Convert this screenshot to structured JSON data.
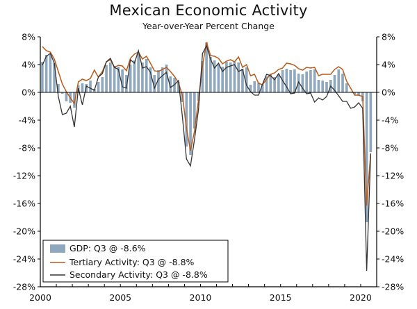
{
  "chart_data": {
    "type": "bar+line",
    "title": "Mexican Economic Activity",
    "subtitle": "Year-over-Year Percent Change",
    "xlabel": "",
    "ylabel": "",
    "ylim": [
      -28,
      8
    ],
    "yticks": [
      8,
      4,
      0,
      -4,
      -8,
      -12,
      -16,
      -20,
      -24,
      -28
    ],
    "ytick_labels": [
      "8%",
      "4%",
      "0%",
      "-4%",
      "-8%",
      "-12%",
      "-16%",
      "-20%",
      "-24%",
      "-28%"
    ],
    "xlim": [
      2000.0,
      2021.0
    ],
    "xticks": [
      2000,
      2005,
      2010,
      2015,
      2020
    ],
    "xtick_labels": [
      "2000",
      "2005",
      "2010",
      "2015",
      "2020"
    ],
    "legend_position": "bottom-left",
    "legend": [
      "GDP: Q3 @ -8.6%",
      "Tertiary Activity: Q3 @ -8.8%",
      "Secondary Activity: Q3 @ -8.8%"
    ],
    "colors": {
      "gdp": "#8fa8bd",
      "tertiary": "#b85a1c",
      "secondary": "#333333",
      "axis": "#000000"
    },
    "series": [
      {
        "name": "GDP",
        "type": "bar",
        "x": [
          2000.0,
          2000.25,
          2000.5,
          2000.75,
          2001.0,
          2001.25,
          2001.5,
          2001.75,
          2002.0,
          2002.25,
          2002.5,
          2002.75,
          2003.0,
          2003.25,
          2003.5,
          2003.75,
          2004.0,
          2004.25,
          2004.5,
          2004.75,
          2005.0,
          2005.25,
          2005.5,
          2005.75,
          2006.0,
          2006.25,
          2006.5,
          2006.75,
          2007.0,
          2007.25,
          2007.5,
          2007.75,
          2008.0,
          2008.25,
          2008.5,
          2008.75,
          2009.0,
          2009.25,
          2009.5,
          2009.75,
          2010.0,
          2010.25,
          2010.5,
          2010.75,
          2011.0,
          2011.25,
          2011.5,
          2011.75,
          2012.0,
          2012.25,
          2012.5,
          2012.75,
          2013.0,
          2013.25,
          2013.5,
          2013.75,
          2014.0,
          2014.25,
          2014.5,
          2014.75,
          2015.0,
          2015.25,
          2015.5,
          2015.75,
          2016.0,
          2016.25,
          2016.5,
          2016.75,
          2017.0,
          2017.25,
          2017.5,
          2017.75,
          2018.0,
          2018.25,
          2018.5,
          2018.75,
          2019.0,
          2019.25,
          2019.5,
          2019.75,
          2020.0,
          2020.25,
          2020.5
        ],
        "values": [
          4.4,
          5.4,
          5.6,
          4.2,
          1.2,
          -0.2,
          -1.3,
          -1.5,
          -2.2,
          1.0,
          1.3,
          1.2,
          1.7,
          0.5,
          1.5,
          2.2,
          3.9,
          4.3,
          3.8,
          3.7,
          3.3,
          2.5,
          4.0,
          4.6,
          5.6,
          4.3,
          4.8,
          3.6,
          2.5,
          3.2,
          3.6,
          4.0,
          2.3,
          2.1,
          1.5,
          -1.4,
          -7.8,
          -9.0,
          -5.2,
          -1.2,
          4.5,
          7.2,
          5.1,
          4.6,
          4.1,
          3.7,
          4.4,
          4.3,
          4.4,
          4.3,
          3.4,
          3.6,
          1.1,
          1.6,
          1.4,
          1.1,
          2.3,
          2.6,
          2.2,
          2.6,
          3.2,
          3.4,
          3.2,
          3.3,
          2.7,
          2.6,
          3.0,
          3.2,
          3.3,
          1.8,
          1.7,
          1.5,
          1.8,
          2.5,
          3.3,
          2.7,
          1.3,
          0.1,
          -0.3,
          -0.5,
          -1.3,
          -18.7,
          -8.6
        ]
      },
      {
        "name": "Tertiary Activity",
        "type": "line",
        "x": [
          2000.0,
          2000.25,
          2000.5,
          2000.75,
          2001.0,
          2001.25,
          2001.5,
          2001.75,
          2002.0,
          2002.25,
          2002.5,
          2002.75,
          2003.0,
          2003.25,
          2003.5,
          2003.75,
          2004.0,
          2004.25,
          2004.5,
          2004.75,
          2005.0,
          2005.25,
          2005.5,
          2005.75,
          2006.0,
          2006.25,
          2006.5,
          2006.75,
          2007.0,
          2007.25,
          2007.5,
          2007.75,
          2008.0,
          2008.25,
          2008.5,
          2008.75,
          2009.0,
          2009.25,
          2009.5,
          2009.75,
          2010.0,
          2010.25,
          2010.5,
          2010.75,
          2011.0,
          2011.25,
          2011.5,
          2011.75,
          2012.0,
          2012.25,
          2012.5,
          2012.75,
          2013.0,
          2013.25,
          2013.5,
          2013.75,
          2014.0,
          2014.25,
          2014.5,
          2014.75,
          2015.0,
          2015.25,
          2015.5,
          2015.75,
          2016.0,
          2016.25,
          2016.5,
          2016.75,
          2017.0,
          2017.25,
          2017.5,
          2017.75,
          2018.0,
          2018.25,
          2018.5,
          2018.75,
          2019.0,
          2019.25,
          2019.5,
          2019.75,
          2020.0,
          2020.25,
          2020.5
        ],
        "values": [
          6.6,
          6.0,
          5.8,
          4.8,
          3.0,
          1.2,
          0.1,
          -0.8,
          -1.6,
          1.5,
          1.9,
          1.7,
          2.0,
          3.2,
          2.2,
          3.0,
          4.4,
          4.7,
          3.6,
          3.9,
          3.8,
          3.1,
          4.9,
          5.5,
          5.8,
          4.8,
          5.2,
          4.2,
          3.1,
          3.0,
          3.3,
          3.6,
          3.0,
          2.3,
          1.4,
          -0.5,
          -5.2,
          -8.4,
          -5.6,
          -1.1,
          3.8,
          7.2,
          5.3,
          5.2,
          4.9,
          4.1,
          4.5,
          4.7,
          4.4,
          5.1,
          3.6,
          4.0,
          2.4,
          2.6,
          1.3,
          1.1,
          1.9,
          2.6,
          2.8,
          3.3,
          3.5,
          4.2,
          4.1,
          3.9,
          3.4,
          3.2,
          3.6,
          3.5,
          3.6,
          2.4,
          2.6,
          2.6,
          2.6,
          3.3,
          3.7,
          3.3,
          1.6,
          0.6,
          -0.4,
          -0.4,
          -0.6,
          -16.3,
          -8.8
        ]
      },
      {
        "name": "Secondary Activity",
        "type": "line",
        "x": [
          2000.0,
          2000.25,
          2000.5,
          2000.75,
          2001.0,
          2001.25,
          2001.5,
          2001.75,
          2002.0,
          2002.25,
          2002.5,
          2002.75,
          2003.0,
          2003.25,
          2003.5,
          2003.75,
          2004.0,
          2004.25,
          2004.5,
          2004.75,
          2005.0,
          2005.25,
          2005.5,
          2005.75,
          2006.0,
          2006.25,
          2006.5,
          2006.75,
          2007.0,
          2007.25,
          2007.5,
          2007.75,
          2008.0,
          2008.25,
          2008.5,
          2008.75,
          2009.0,
          2009.25,
          2009.5,
          2009.75,
          2010.0,
          2010.25,
          2010.5,
          2010.75,
          2011.0,
          2011.25,
          2011.5,
          2011.75,
          2012.0,
          2012.25,
          2012.5,
          2012.75,
          2013.0,
          2013.25,
          2013.5,
          2013.75,
          2014.0,
          2014.25,
          2014.5,
          2014.75,
          2015.0,
          2015.25,
          2015.5,
          2015.75,
          2016.0,
          2016.25,
          2016.5,
          2016.75,
          2017.0,
          2017.25,
          2017.5,
          2017.75,
          2018.0,
          2018.25,
          2018.5,
          2018.75,
          2019.0,
          2019.25,
          2019.5,
          2019.75,
          2020.0,
          2020.25,
          2020.5
        ],
        "values": [
          3.9,
          5.2,
          5.6,
          4.2,
          -0.6,
          -3.2,
          -3.0,
          -2.0,
          -5.0,
          0.6,
          -1.8,
          0.9,
          0.6,
          0.3,
          2.2,
          2.7,
          4.4,
          4.9,
          3.6,
          3.3,
          0.8,
          0.6,
          4.7,
          4.2,
          6.0,
          3.5,
          3.7,
          2.9,
          0.6,
          1.9,
          2.4,
          2.9,
          0.7,
          1.1,
          1.7,
          -3.6,
          -9.6,
          -10.6,
          -6.8,
          -2.5,
          5.6,
          6.7,
          4.8,
          3.5,
          4.2,
          3.0,
          3.6,
          3.8,
          4.0,
          3.0,
          3.3,
          1.0,
          0.1,
          -0.4,
          -0.4,
          1.2,
          2.6,
          2.4,
          1.8,
          2.7,
          1.7,
          0.8,
          -0.2,
          -0.1,
          1.5,
          0.6,
          -0.2,
          -0.1,
          -1.4,
          -0.8,
          -1.1,
          -0.6,
          0.9,
          0.3,
          -0.5,
          -1.3,
          -1.3,
          -2.3,
          -2.1,
          -1.5,
          -2.3,
          -25.7,
          -8.8
        ]
      }
    ]
  }
}
